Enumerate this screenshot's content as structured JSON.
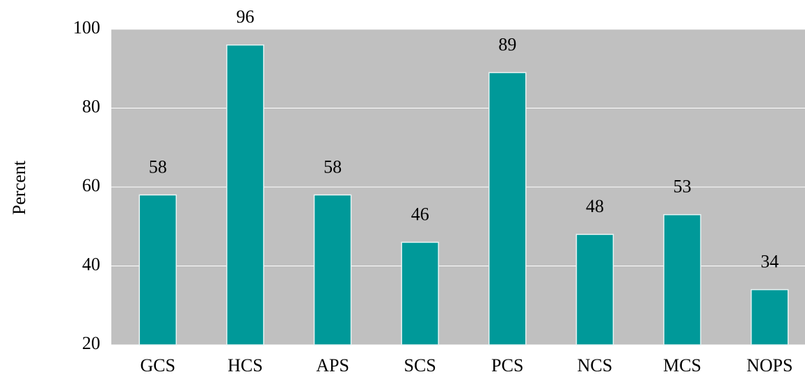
{
  "chart_data": {
    "type": "bar",
    "y_label": "Percent",
    "categories": [
      "GCS",
      "HCS",
      "APS",
      "SCS",
      "PCS",
      "NCS",
      "MCS",
      "NOPS"
    ],
    "values": [
      58,
      96,
      58,
      46,
      89,
      48,
      53,
      34
    ],
    "color": "#009999",
    "ylim": [
      20,
      100
    ],
    "yticks": [
      20,
      40,
      60,
      80,
      100
    ],
    "grid": true
  }
}
